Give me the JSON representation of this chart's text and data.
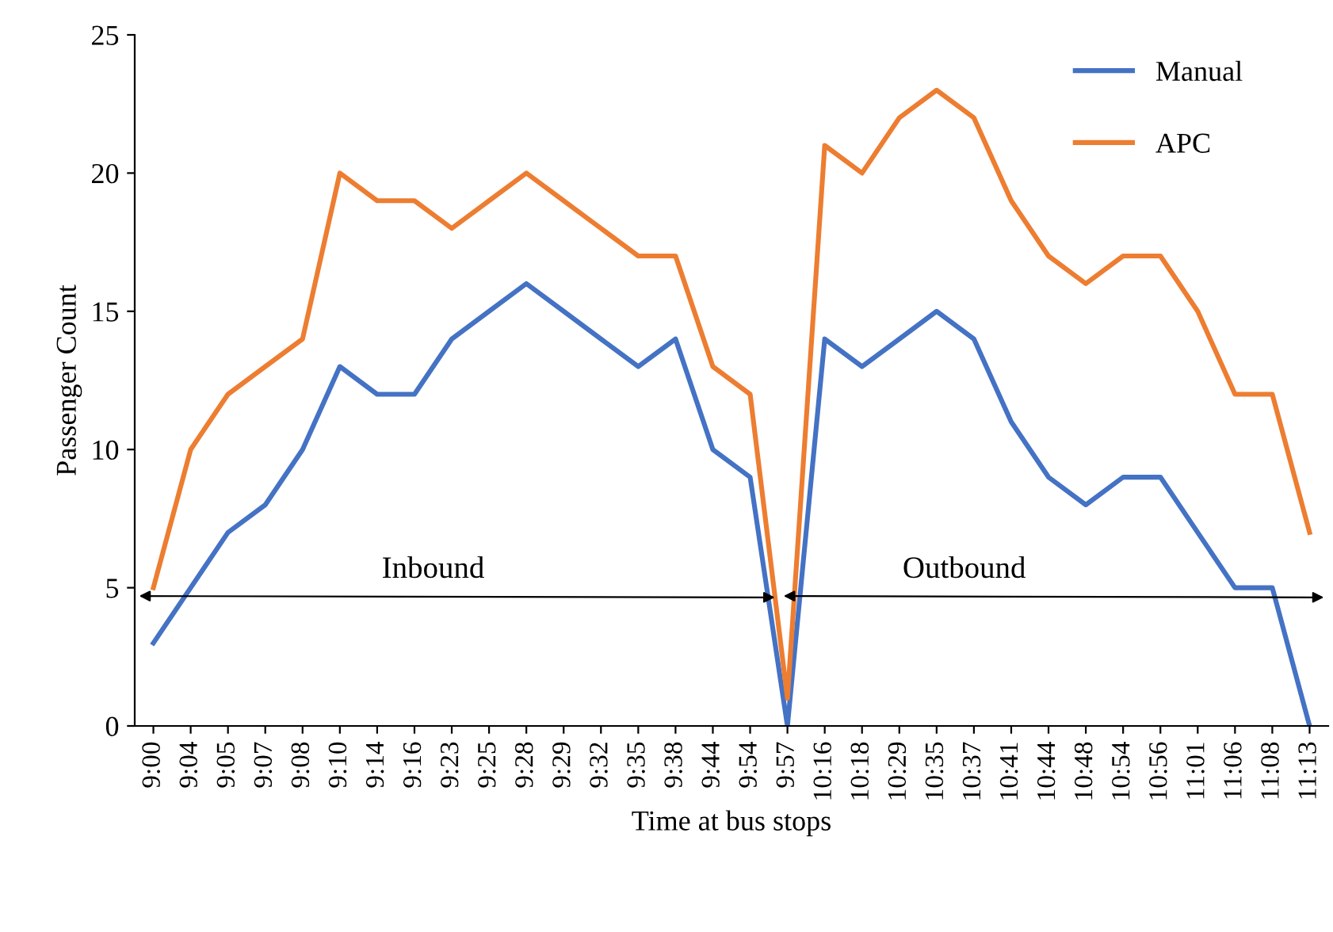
{
  "chart_data": {
    "type": "line",
    "xlabel": "Time at bus stops",
    "ylabel": "Passenger Count",
    "categories": [
      "9:00",
      "9:04",
      "9:05",
      "9:07",
      "9:08",
      "9:10",
      "9:14",
      "9:16",
      "9:23",
      "9:25",
      "9:28",
      "9:29",
      "9:32",
      "9:35",
      "9:38",
      "9:44",
      "9:54",
      "9:57",
      "10:16",
      "10:18",
      "10:29",
      "10:35",
      "10:37",
      "10:41",
      "10:44",
      "10:48",
      "10:54",
      "10:56",
      "11:01",
      "11:06",
      "11:08",
      "11:13"
    ],
    "series": [
      {
        "name": "Manual",
        "color": "#4472c4",
        "values": [
          3,
          5,
          7,
          8,
          10,
          13,
          12,
          12,
          14,
          15,
          16,
          15,
          14,
          13,
          14,
          10,
          9,
          0,
          14,
          13,
          14,
          15,
          14,
          11,
          9,
          8,
          9,
          9,
          7,
          5,
          5,
          0
        ]
      },
      {
        "name": "APC",
        "color": "#ed7d31",
        "values": [
          5,
          10,
          12,
          13,
          14,
          20,
          19,
          19,
          18,
          19,
          20,
          19,
          18,
          17,
          17,
          13,
          12,
          1,
          21,
          20,
          22,
          23,
          22,
          19,
          17,
          16,
          17,
          17,
          15,
          12,
          12,
          7
        ]
      }
    ],
    "ylim": [
      0,
      25
    ],
    "yticks": [
      0,
      5,
      10,
      15,
      20,
      25
    ],
    "grid": false,
    "legend": "top right",
    "marker": "none",
    "line_style": "solid",
    "annotations": [
      "Inbound",
      "Outbound"
    ]
  }
}
